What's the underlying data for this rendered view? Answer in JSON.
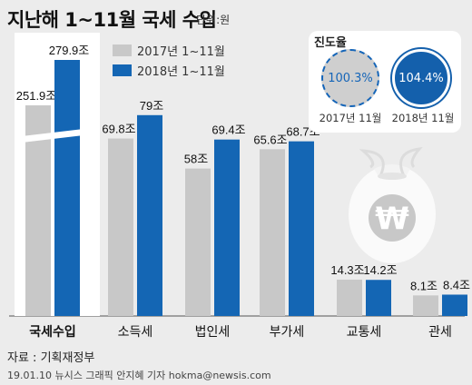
{
  "title": "지난해 1~11월 국세 수입",
  "unit": "단위:원",
  "legend": [
    {
      "label": "2017년 1~11월",
      "color": "#c8c8c8"
    },
    {
      "label": "2018년 1~11월",
      "color": "#1466b4"
    }
  ],
  "progress": {
    "title": "진도율",
    "items": [
      {
        "value": "100.3%",
        "label": "2017년 11월"
      },
      {
        "value": "104.4%",
        "label": "2018년 11월"
      }
    ]
  },
  "chart_data": {
    "type": "bar",
    "categories": [
      "국세수입",
      "소득세",
      "법인세",
      "부가세",
      "교통세",
      "관세"
    ],
    "series": [
      {
        "name": "2017년 1~11월",
        "values": [
          251.9,
          69.8,
          58,
          65.6,
          14.3,
          8.1
        ],
        "labels": [
          "251.9조",
          "69.8조",
          "58조",
          "65.6조",
          "14.3조",
          "8.1조"
        ]
      },
      {
        "name": "2018년 1~11월",
        "values": [
          279.9,
          79,
          69.4,
          68.7,
          14.2,
          8.4
        ],
        "labels": [
          "279.9조",
          "79조",
          "69.4조",
          "68.7조",
          "14.2조",
          "8.4조"
        ]
      }
    ],
    "highlight_category": "국세수입",
    "axis_break": true
  },
  "source": "자료 : 기획재정부",
  "credit": "19.01.10 뉴시스 그래픽 안지혜 기자 hokma@newsis.com"
}
